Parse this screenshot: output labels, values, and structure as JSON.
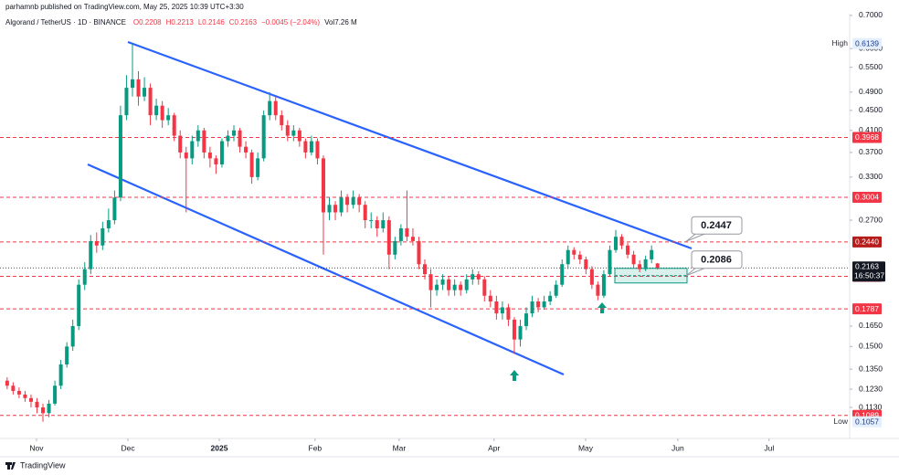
{
  "header": {
    "publisher": "parhamnb published on TradingView.com, May 25, 2025 10:39 UTC+3:30"
  },
  "footer": {
    "brand": "TradingView"
  },
  "chart_data": {
    "type": "candlestick",
    "title": "Algorand / TetherUS · 1D · BINANCE",
    "legend_values": [
      "O0.2208",
      "H0.2213",
      "L0.2146",
      "C0.2163",
      "−0.0045 (−2.04%)",
      "Vol7.26 M"
    ],
    "up_color": "#089981",
    "down_color": "#f23645",
    "log_scale": true,
    "ylim": [
      0.0978,
      0.727
    ],
    "yticks": [
      {
        "value": 0.7,
        "label": "0.7000"
      },
      {
        "value": 0.6,
        "label": "0.6000"
      },
      {
        "value": 0.55,
        "label": "0.5500"
      },
      {
        "value": 0.49,
        "label": "0.4900"
      },
      {
        "value": 0.45,
        "label": "0.4500"
      },
      {
        "value": 0.41,
        "label": "0.4100"
      },
      {
        "value": 0.37,
        "label": "0.3700"
      },
      {
        "value": 0.33,
        "label": "0.3300"
      },
      {
        "value": 0.27,
        "label": "0.2700"
      },
      {
        "value": 0.165,
        "label": "0.1650"
      },
      {
        "value": 0.15,
        "label": "0.1500"
      },
      {
        "value": 0.135,
        "label": "0.1350"
      },
      {
        "value": 0.123,
        "label": "0.1230"
      },
      {
        "value": 0.113,
        "label": "0.1130"
      }
    ],
    "xlim": [
      -1.2,
      141.2
    ],
    "xticks": [
      {
        "value": 4.92,
        "label": "Nov"
      },
      {
        "value": 20.24,
        "label": "Dec"
      },
      {
        "value": 35.55,
        "label": "2025"
      },
      {
        "value": 51.6,
        "label": "Feb"
      },
      {
        "value": 65.7,
        "label": "Mar"
      },
      {
        "value": 81.6,
        "label": "Apr"
      },
      {
        "value": 96.95,
        "label": "May"
      },
      {
        "value": 112.4,
        "label": "Jun"
      },
      {
        "value": 127.7,
        "label": "Jul"
      }
    ],
    "ohlc": [
      [
        0.128,
        0.13,
        0.123,
        0.125
      ],
      [
        0.125,
        0.127,
        0.12,
        0.122
      ],
      [
        0.122,
        0.124,
        0.118,
        0.12
      ],
      [
        0.12,
        0.122,
        0.116,
        0.118
      ],
      [
        0.118,
        0.12,
        0.113,
        0.116
      ],
      [
        0.116,
        0.118,
        0.11,
        0.113
      ],
      [
        0.113,
        0.115,
        0.1057,
        0.11
      ],
      [
        0.11,
        0.117,
        0.108,
        0.115
      ],
      [
        0.115,
        0.128,
        0.114,
        0.125
      ],
      [
        0.125,
        0.141,
        0.123,
        0.138
      ],
      [
        0.138,
        0.153,
        0.136,
        0.15
      ],
      [
        0.15,
        0.17,
        0.147,
        0.165
      ],
      [
        0.165,
        0.205,
        0.162,
        0.2
      ],
      [
        0.2,
        0.222,
        0.195,
        0.215
      ],
      [
        0.215,
        0.252,
        0.21,
        0.245
      ],
      [
        0.245,
        0.255,
        0.232,
        0.24
      ],
      [
        0.24,
        0.268,
        0.235,
        0.26
      ],
      [
        0.26,
        0.285,
        0.255,
        0.27
      ],
      [
        0.27,
        0.31,
        0.265,
        0.3
      ],
      [
        0.3,
        0.46,
        0.295,
        0.44
      ],
      [
        0.44,
        0.53,
        0.43,
        0.5
      ],
      [
        0.5,
        0.6139,
        0.48,
        0.52
      ],
      [
        0.52,
        0.54,
        0.46,
        0.48
      ],
      [
        0.48,
        0.525,
        0.47,
        0.5
      ],
      [
        0.5,
        0.51,
        0.42,
        0.44
      ],
      [
        0.44,
        0.475,
        0.43,
        0.46
      ],
      [
        0.46,
        0.47,
        0.415,
        0.43
      ],
      [
        0.43,
        0.455,
        0.42,
        0.44
      ],
      [
        0.44,
        0.445,
        0.39,
        0.4
      ],
      [
        0.4,
        0.41,
        0.36,
        0.37
      ],
      [
        0.37,
        0.38,
        0.28,
        0.36
      ],
      [
        0.36,
        0.4,
        0.35,
        0.39
      ],
      [
        0.39,
        0.42,
        0.38,
        0.41
      ],
      [
        0.41,
        0.415,
        0.36,
        0.37
      ],
      [
        0.37,
        0.38,
        0.345,
        0.36
      ],
      [
        0.36,
        0.365,
        0.335,
        0.35
      ],
      [
        0.35,
        0.395,
        0.345,
        0.39
      ],
      [
        0.39,
        0.41,
        0.38,
        0.4
      ],
      [
        0.4,
        0.42,
        0.39,
        0.41
      ],
      [
        0.41,
        0.415,
        0.37,
        0.38
      ],
      [
        0.38,
        0.39,
        0.36,
        0.37
      ],
      [
        0.37,
        0.375,
        0.32,
        0.33
      ],
      [
        0.33,
        0.37,
        0.325,
        0.36
      ],
      [
        0.36,
        0.45,
        0.355,
        0.44
      ],
      [
        0.44,
        0.49,
        0.43,
        0.47
      ],
      [
        0.47,
        0.48,
        0.43,
        0.44
      ],
      [
        0.44,
        0.45,
        0.41,
        0.42
      ],
      [
        0.42,
        0.43,
        0.39,
        0.4
      ],
      [
        0.4,
        0.42,
        0.39,
        0.41
      ],
      [
        0.41,
        0.415,
        0.38,
        0.39
      ],
      [
        0.39,
        0.395,
        0.36,
        0.37
      ],
      [
        0.37,
        0.4,
        0.365,
        0.39
      ],
      [
        0.39,
        0.395,
        0.35,
        0.36
      ],
      [
        0.36,
        0.365,
        0.23,
        0.28
      ],
      [
        0.28,
        0.3,
        0.27,
        0.29
      ],
      [
        0.29,
        0.295,
        0.27,
        0.28
      ],
      [
        0.28,
        0.31,
        0.275,
        0.3
      ],
      [
        0.3,
        0.305,
        0.28,
        0.29
      ],
      [
        0.29,
        0.31,
        0.285,
        0.3
      ],
      [
        0.3,
        0.305,
        0.28,
        0.29
      ],
      [
        0.29,
        0.295,
        0.26,
        0.27
      ],
      [
        0.27,
        0.28,
        0.26,
        0.27
      ],
      [
        0.27,
        0.275,
        0.25,
        0.26
      ],
      [
        0.26,
        0.28,
        0.255,
        0.27
      ],
      [
        0.27,
        0.275,
        0.215,
        0.23
      ],
      [
        0.23,
        0.25,
        0.225,
        0.245
      ],
      [
        0.245,
        0.265,
        0.24,
        0.26
      ],
      [
        0.26,
        0.31,
        0.245,
        0.25
      ],
      [
        0.25,
        0.26,
        0.24,
        0.245
      ],
      [
        0.245,
        0.25,
        0.215,
        0.22
      ],
      [
        0.22,
        0.225,
        0.205,
        0.21
      ],
      [
        0.21,
        0.215,
        0.18,
        0.195
      ],
      [
        0.195,
        0.205,
        0.19,
        0.2
      ],
      [
        0.2,
        0.21,
        0.195,
        0.205
      ],
      [
        0.205,
        0.208,
        0.19,
        0.195
      ],
      [
        0.195,
        0.205,
        0.19,
        0.2
      ],
      [
        0.2,
        0.203,
        0.19,
        0.195
      ],
      [
        0.195,
        0.21,
        0.192,
        0.205
      ],
      [
        0.205,
        0.215,
        0.2,
        0.21
      ],
      [
        0.21,
        0.213,
        0.2,
        0.205
      ],
      [
        0.205,
        0.208,
        0.185,
        0.19
      ],
      [
        0.19,
        0.195,
        0.18,
        0.185
      ],
      [
        0.185,
        0.19,
        0.17,
        0.175
      ],
      [
        0.175,
        0.185,
        0.17,
        0.18
      ],
      [
        0.18,
        0.183,
        0.165,
        0.17
      ],
      [
        0.17,
        0.172,
        0.145,
        0.155
      ],
      [
        0.155,
        0.17,
        0.15,
        0.165
      ],
      [
        0.165,
        0.18,
        0.162,
        0.175
      ],
      [
        0.175,
        0.19,
        0.172,
        0.185
      ],
      [
        0.185,
        0.188,
        0.176,
        0.18
      ],
      [
        0.18,
        0.19,
        0.178,
        0.185
      ],
      [
        0.185,
        0.194,
        0.182,
        0.19
      ],
      [
        0.19,
        0.204,
        0.188,
        0.2
      ],
      [
        0.2,
        0.225,
        0.198,
        0.22
      ],
      [
        0.22,
        0.24,
        0.215,
        0.235
      ],
      [
        0.235,
        0.238,
        0.225,
        0.23
      ],
      [
        0.23,
        0.234,
        0.22,
        0.225
      ],
      [
        0.225,
        0.228,
        0.21,
        0.215
      ],
      [
        0.215,
        0.218,
        0.196,
        0.2
      ],
      [
        0.2,
        0.203,
        0.186,
        0.19
      ],
      [
        0.19,
        0.214,
        0.188,
        0.21
      ],
      [
        0.21,
        0.24,
        0.208,
        0.235
      ],
      [
        0.235,
        0.258,
        0.232,
        0.25
      ],
      [
        0.25,
        0.253,
        0.236,
        0.24
      ],
      [
        0.24,
        0.243,
        0.226,
        0.23
      ],
      [
        0.23,
        0.234,
        0.216,
        0.22
      ],
      [
        0.22,
        0.224,
        0.212,
        0.215
      ],
      [
        0.215,
        0.229,
        0.213,
        0.225
      ],
      [
        0.225,
        0.24,
        0.221,
        0.235
      ],
      [
        0.2208,
        0.2213,
        0.2146,
        0.2163
      ]
    ],
    "price_lines": [
      {
        "value": 0.3968,
        "color": "#f23645"
      },
      {
        "value": 0.3004,
        "color": "#f23645"
      },
      {
        "value": 0.244,
        "label": "0.2440",
        "color": "#b71c1c"
      },
      {
        "value": 0.2079,
        "color": "#f23645"
      },
      {
        "value": 0.1787,
        "color": "#f23645"
      },
      {
        "value": 0.1089,
        "color": "#f23645"
      }
    ],
    "current_price": {
      "value": 0.2163,
      "countdown": "16:50:37"
    },
    "high": {
      "label": "High",
      "value": 0.6139
    },
    "low": {
      "label": "Low",
      "value": 0.1057
    },
    "annotations": [
      {
        "value": 0.2447
      },
      {
        "value": 0.2086
      }
    ]
  }
}
